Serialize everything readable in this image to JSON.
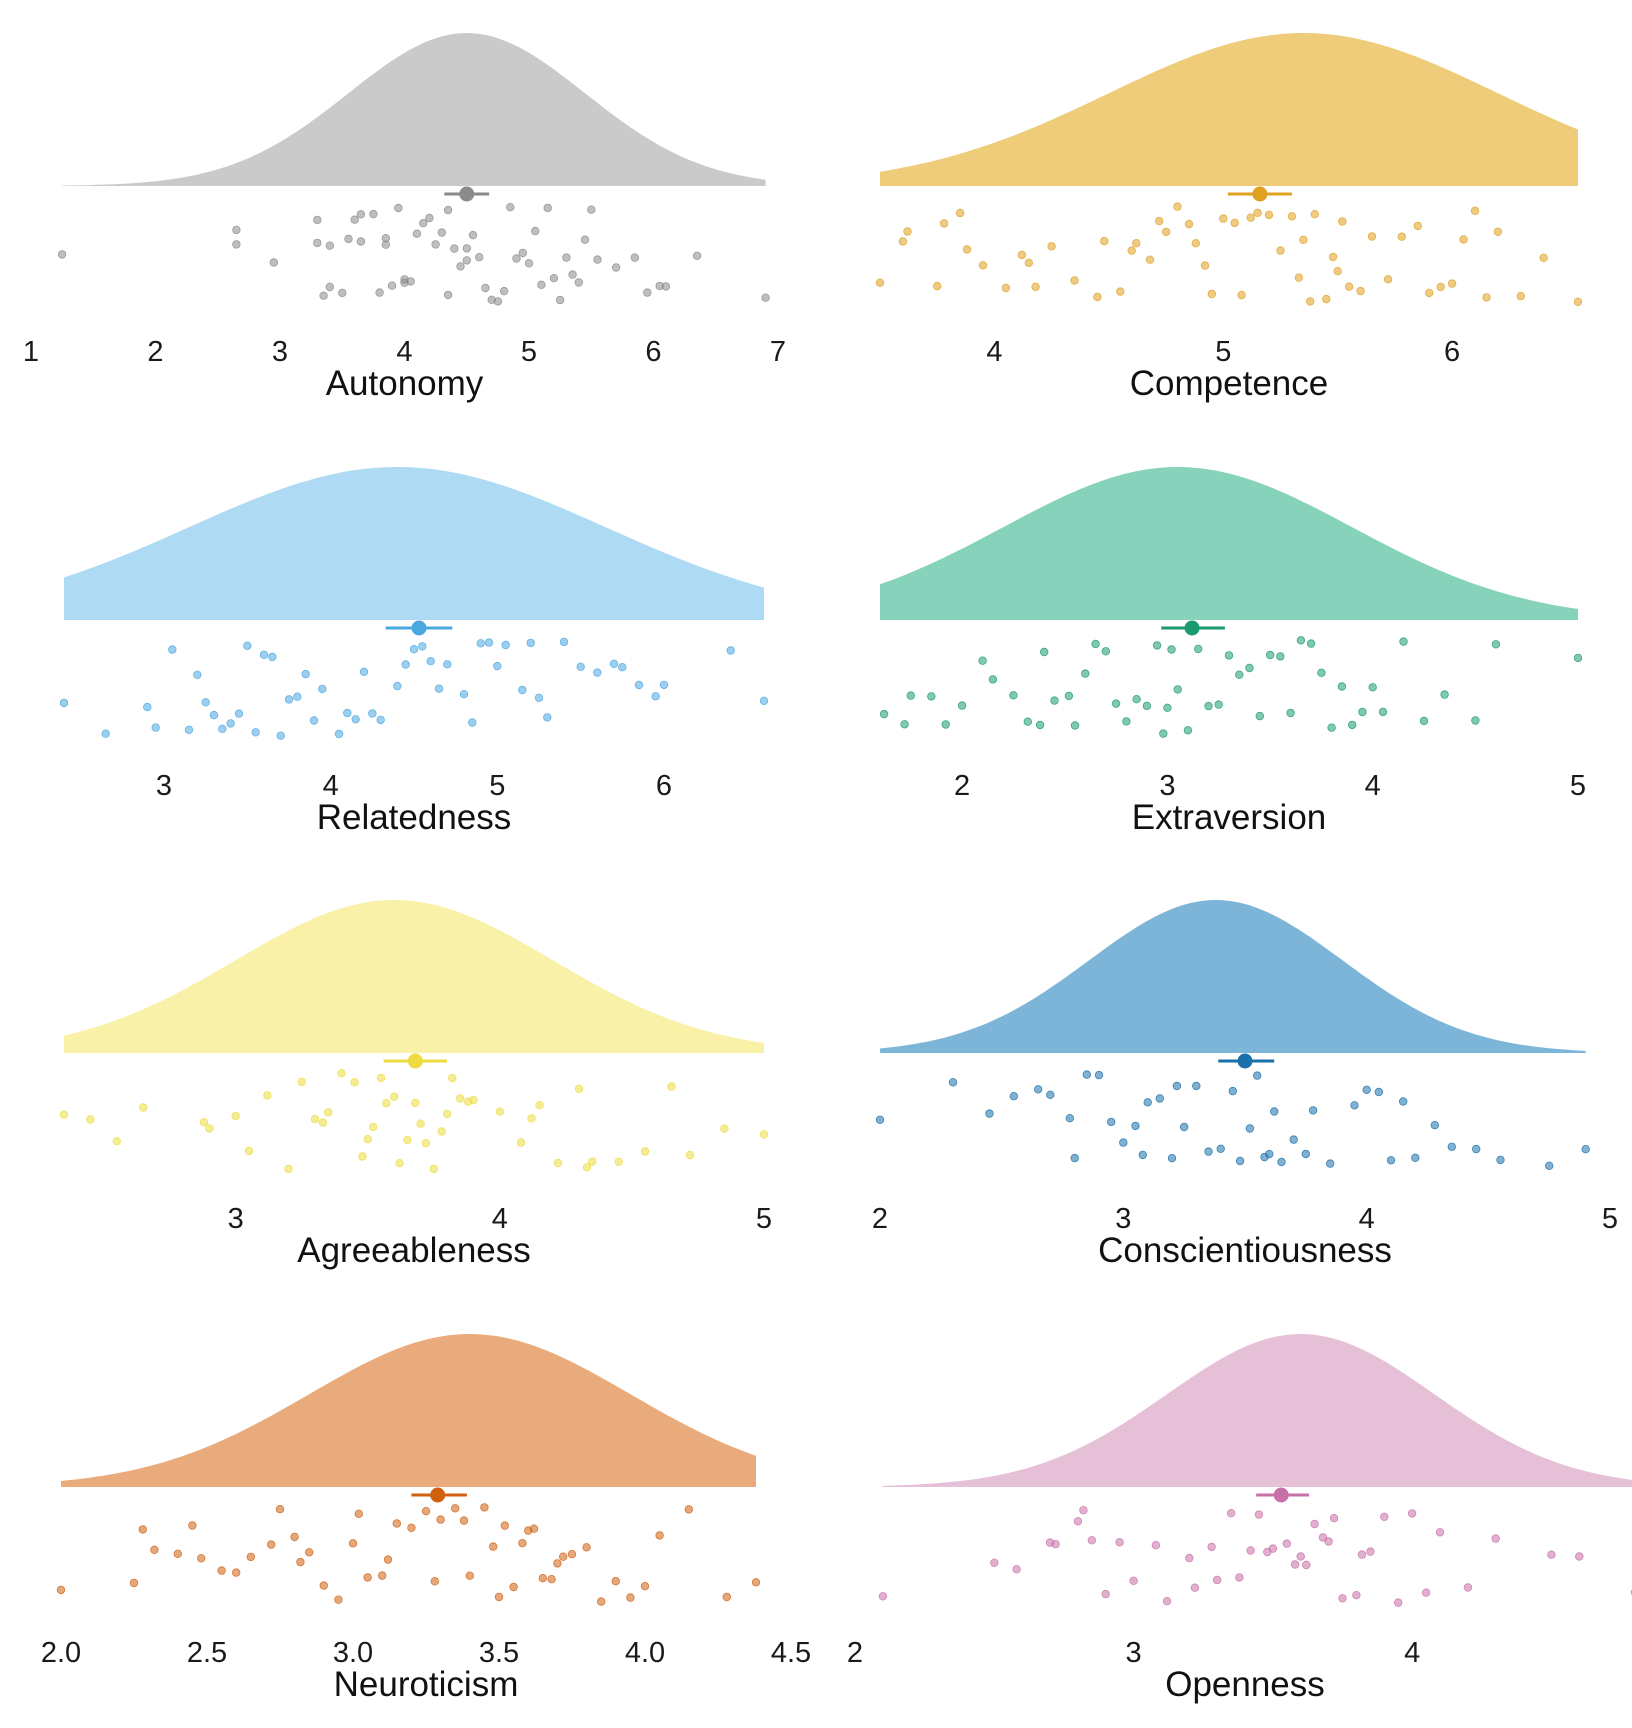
{
  "chart_data": [
    {
      "type": "raincloud",
      "xlabel": "Autonomy",
      "color": "#b5b5b5",
      "point_color": "#8a8a8a",
      "xlim": [
        1,
        7
      ],
      "ticks": [
        1,
        2,
        3,
        4,
        5,
        6,
        7
      ],
      "tick_labels": [
        "1",
        "2",
        "3",
        "4",
        "5",
        "6",
        "7"
      ],
      "range": [
        1.25,
        6.9
      ],
      "density": {
        "mean": 4.5,
        "sd": 0.95
      },
      "summary": {
        "mean": 4.5,
        "ci": [
          4.32,
          4.68
        ]
      },
      "points": [
        1.25,
        2.65,
        2.65,
        2.95,
        3.3,
        3.3,
        3.35,
        3.4,
        3.4,
        3.5,
        3.55,
        3.6,
        3.65,
        3.65,
        3.75,
        3.8,
        3.85,
        3.85,
        3.9,
        3.95,
        4.0,
        4.0,
        4.05,
        4.1,
        4.15,
        4.2,
        4.25,
        4.3,
        4.35,
        4.35,
        4.4,
        4.45,
        4.5,
        4.5,
        4.55,
        4.6,
        4.65,
        4.7,
        4.75,
        4.8,
        4.85,
        4.9,
        4.95,
        5.0,
        5.05,
        5.1,
        5.15,
        5.2,
        5.25,
        5.3,
        5.35,
        5.4,
        5.45,
        5.5,
        5.55,
        5.7,
        5.85,
        5.95,
        6.05,
        6.1,
        6.35,
        6.9
      ]
    },
    {
      "type": "raincloud",
      "xlabel": "Competence",
      "color": "#e8b946",
      "point_color": "#e0a020",
      "xlim": [
        3.5,
        6.55
      ],
      "ticks": [
        4,
        5,
        6
      ],
      "tick_labels": [
        "4",
        "5",
        "6"
      ],
      "range": [
        3.5,
        6.55
      ],
      "density": {
        "mean": 5.35,
        "sd": 0.85
      },
      "summary": {
        "mean": 5.16,
        "ci": [
          5.02,
          5.3
        ]
      },
      "points": [
        3.5,
        3.6,
        3.62,
        3.75,
        3.78,
        3.85,
        3.88,
        3.95,
        4.05,
        4.12,
        4.15,
        4.18,
        4.25,
        4.35,
        4.45,
        4.48,
        4.55,
        4.6,
        4.62,
        4.68,
        4.72,
        4.75,
        4.8,
        4.85,
        4.88,
        4.92,
        4.95,
        5.0,
        5.05,
        5.08,
        5.12,
        5.15,
        5.2,
        5.25,
        5.3,
        5.33,
        5.35,
        5.38,
        5.4,
        5.45,
        5.48,
        5.5,
        5.52,
        5.55,
        5.6,
        5.65,
        5.72,
        5.78,
        5.85,
        5.9,
        5.95,
        6.0,
        6.05,
        6.1,
        6.15,
        6.2,
        6.3,
        6.4,
        6.55
      ]
    },
    {
      "type": "raincloud",
      "xlabel": "Relatedness",
      "color": "#8fcdef",
      "point_color": "#4aa8e0",
      "xlim": [
        2.4,
        6.6
      ],
      "ticks": [
        3,
        4,
        5,
        6
      ],
      "tick_labels": [
        "3",
        "4",
        "5",
        "6"
      ],
      "range": [
        2.4,
        6.6
      ],
      "density": {
        "mean": 4.4,
        "sd": 1.25
      },
      "summary": {
        "mean": 4.53,
        "ci": [
          4.33,
          4.73
        ]
      },
      "points": [
        2.4,
        2.65,
        2.9,
        2.95,
        3.05,
        3.15,
        3.2,
        3.25,
        3.3,
        3.35,
        3.4,
        3.45,
        3.5,
        3.55,
        3.6,
        3.65,
        3.7,
        3.75,
        3.8,
        3.85,
        3.9,
        3.95,
        4.05,
        4.1,
        4.15,
        4.2,
        4.25,
        4.3,
        4.4,
        4.45,
        4.5,
        4.55,
        4.6,
        4.65,
        4.7,
        4.8,
        4.85,
        4.9,
        4.95,
        5.0,
        5.05,
        5.15,
        5.2,
        5.25,
        5.3,
        5.4,
        5.5,
        5.6,
        5.7,
        5.75,
        5.85,
        5.95,
        6.0,
        6.4,
        6.6
      ]
    },
    {
      "type": "raincloud",
      "xlabel": "Extraversion",
      "color": "#57c0a0",
      "point_color": "#1a9a70",
      "xlim": [
        1.6,
        5.0
      ],
      "ticks": [
        2,
        3,
        4,
        5
      ],
      "tick_labels": [
        "2",
        "3",
        "4",
        "5"
      ],
      "range": [
        1.6,
        5.0
      ],
      "density": {
        "mean": 3.05,
        "sd": 0.85
      },
      "summary": {
        "mean": 3.12,
        "ci": [
          2.97,
          3.28
        ]
      },
      "points": [
        1.62,
        1.72,
        1.75,
        1.85,
        1.92,
        2.0,
        2.1,
        2.15,
        2.25,
        2.32,
        2.38,
        2.4,
        2.45,
        2.52,
        2.55,
        2.6,
        2.65,
        2.7,
        2.75,
        2.8,
        2.85,
        2.9,
        2.95,
        2.98,
        3.0,
        3.02,
        3.05,
        3.1,
        3.15,
        3.2,
        3.25,
        3.3,
        3.35,
        3.4,
        3.45,
        3.5,
        3.55,
        3.6,
        3.65,
        3.7,
        3.75,
        3.8,
        3.85,
        3.9,
        3.95,
        4.0,
        4.05,
        4.15,
        4.25,
        4.35,
        4.5,
        4.6,
        5.0
      ]
    },
    {
      "type": "raincloud",
      "xlabel": "Agreeableness",
      "color": "#f5eb85",
      "point_color": "#ecdc40",
      "xlim": [
        2.35,
        5.0
      ],
      "ticks": [
        3,
        4,
        5
      ],
      "tick_labels": [
        "3",
        "4",
        "5"
      ],
      "range": [
        2.35,
        5.0
      ],
      "density": {
        "mean": 3.6,
        "sd": 0.6
      },
      "summary": {
        "mean": 3.68,
        "ci": [
          3.56,
          3.8
        ]
      },
      "points": [
        2.35,
        2.45,
        2.55,
        2.65,
        2.88,
        2.9,
        3.0,
        3.05,
        3.12,
        3.2,
        3.25,
        3.3,
        3.33,
        3.35,
        3.4,
        3.45,
        3.48,
        3.5,
        3.52,
        3.55,
        3.57,
        3.6,
        3.62,
        3.65,
        3.68,
        3.7,
        3.72,
        3.75,
        3.78,
        3.8,
        3.82,
        3.85,
        3.88,
        3.9,
        4.0,
        4.08,
        4.12,
        4.15,
        4.22,
        4.3,
        4.33,
        4.35,
        4.45,
        4.55,
        4.65,
        4.72,
        4.85,
        5.0
      ]
    },
    {
      "type": "raincloud",
      "xlabel": "Conscientiousness",
      "color": "#4a98c9",
      "point_color": "#1a70aa",
      "xlim": [
        2,
        5
      ],
      "ticks": [
        2,
        3,
        4,
        5
      ],
      "tick_labels": [
        "2",
        "3",
        "4",
        "5"
      ],
      "range": [
        2.0,
        4.9
      ],
      "density": {
        "mean": 3.38,
        "sd": 0.52
      },
      "summary": {
        "mean": 3.5,
        "ci": [
          3.39,
          3.62
        ]
      },
      "points": [
        2.0,
        2.3,
        2.45,
        2.55,
        2.65,
        2.7,
        2.78,
        2.8,
        2.85,
        2.9,
        2.95,
        3.0,
        3.05,
        3.08,
        3.1,
        3.15,
        3.2,
        3.22,
        3.25,
        3.3,
        3.35,
        3.4,
        3.45,
        3.48,
        3.52,
        3.55,
        3.58,
        3.6,
        3.62,
        3.65,
        3.7,
        3.75,
        3.78,
        3.85,
        3.95,
        4.0,
        4.05,
        4.1,
        4.15,
        4.2,
        4.28,
        4.35,
        4.45,
        4.55,
        4.75,
        4.9
      ]
    },
    {
      "type": "raincloud",
      "xlabel": "Neuroticism",
      "color": "#e08a48",
      "point_color": "#d06010",
      "xlim": [
        2.0,
        4.5
      ],
      "ticks": [
        2.0,
        2.5,
        3.0,
        3.5,
        4.0,
        4.5
      ],
      "tick_labels": [
        "2.0",
        "2.5",
        "3.0",
        "3.5",
        "4.0",
        "4.5"
      ],
      "range": [
        2.0,
        4.38
      ],
      "density": {
        "mean": 3.4,
        "sd": 0.55
      },
      "summary": {
        "mean": 3.29,
        "ci": [
          3.2,
          3.39
        ]
      },
      "points": [
        2.0,
        2.25,
        2.28,
        2.32,
        2.4,
        2.45,
        2.48,
        2.55,
        2.6,
        2.65,
        2.72,
        2.75,
        2.8,
        2.82,
        2.85,
        2.9,
        2.95,
        3.0,
        3.02,
        3.05,
        3.1,
        3.12,
        3.15,
        3.2,
        3.25,
        3.28,
        3.3,
        3.35,
        3.38,
        3.4,
        3.45,
        3.48,
        3.5,
        3.52,
        3.55,
        3.58,
        3.6,
        3.62,
        3.65,
        3.68,
        3.7,
        3.72,
        3.75,
        3.8,
        3.85,
        3.9,
        3.95,
        4.0,
        4.05,
        4.15,
        4.28,
        4.38
      ]
    },
    {
      "type": "raincloud",
      "xlabel": "Openness",
      "color": "#dca8c8",
      "point_color": "#c870a8",
      "xlim": [
        2,
        4.8
      ],
      "ticks": [
        2,
        3,
        4
      ],
      "tick_labels": [
        "2",
        "3",
        "4"
      ],
      "range": [
        2.1,
        4.8
      ],
      "density": {
        "mean": 3.6,
        "sd": 0.48
      },
      "summary": {
        "mean": 3.53,
        "ci": [
          3.44,
          3.63
        ]
      },
      "points": [
        2.1,
        2.5,
        2.58,
        2.7,
        2.72,
        2.8,
        2.82,
        2.85,
        2.9,
        2.95,
        3.0,
        3.08,
        3.12,
        3.2,
        3.22,
        3.28,
        3.3,
        3.35,
        3.38,
        3.42,
        3.45,
        3.48,
        3.5,
        3.55,
        3.58,
        3.6,
        3.62,
        3.65,
        3.68,
        3.7,
        3.72,
        3.75,
        3.8,
        3.82,
        3.85,
        3.9,
        3.95,
        4.0,
        4.05,
        4.1,
        4.2,
        4.3,
        4.5,
        4.6,
        4.8
      ]
    }
  ]
}
